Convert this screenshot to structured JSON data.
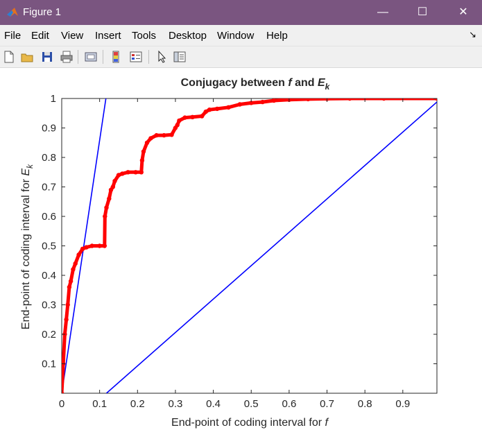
{
  "window": {
    "title": "Figure 1",
    "minimize_glyph": "—",
    "maximize_glyph": "☐",
    "close_glyph": "✕"
  },
  "menu": {
    "items": [
      {
        "label": "File"
      },
      {
        "label": "Edit"
      },
      {
        "label": "View"
      },
      {
        "label": "Insert"
      },
      {
        "label": "Tools"
      },
      {
        "label": "Desktop"
      },
      {
        "label": "Window"
      },
      {
        "label": "Help"
      }
    ],
    "dock_glyph": "↘"
  },
  "toolbar": {
    "icons": [
      "new-figure-icon",
      "open-file-icon",
      "save-icon",
      "print-icon",
      "link-plot-icon",
      "colorbar-icon",
      "legend-icon",
      "edit-plot-arrow-icon",
      "property-inspector-icon"
    ]
  },
  "colors": {
    "titlebar": "#7a5580",
    "curve": "#ff0000",
    "lines": "#0000ff"
  },
  "chart_data": {
    "type": "line",
    "title": "Conjugacy between f and E_k",
    "title_main": "Conjugacy between ",
    "title_f": "f",
    "title_and": " and ",
    "title_E": "E",
    "title_k": "k",
    "xlabel": "End-point of coding interval for ",
    "xlabel_var": "f",
    "ylabel": "End-point of coding interval for ",
    "ylabel_var": "E",
    "ylabel_sub": "k",
    "xlim": [
      0,
      0.99
    ],
    "ylim": [
      0,
      1
    ],
    "xticks": [
      "0",
      "0.1",
      "0.2",
      "0.3",
      "0.4",
      "0.5",
      "0.6",
      "0.7",
      "0.8",
      "0.9"
    ],
    "yticks": [
      "0.1",
      "0.2",
      "0.3",
      "0.4",
      "0.5",
      "0.6",
      "0.7",
      "0.8",
      "0.9",
      "1"
    ],
    "grid": false,
    "series": [
      {
        "style": "thick-red-markers",
        "x": [
          0,
          0.004,
          0.008,
          0.012,
          0.016,
          0.02,
          0.024,
          0.03,
          0.036,
          0.045,
          0.055,
          0.065,
          0.08,
          0.1,
          0.113,
          0.114,
          0.118,
          0.125,
          0.13,
          0.135,
          0.14,
          0.15,
          0.16,
          0.175,
          0.195,
          0.21,
          0.212,
          0.216,
          0.225,
          0.235,
          0.25,
          0.27,
          0.29,
          0.3,
          0.305,
          0.31,
          0.325,
          0.345,
          0.37,
          0.38,
          0.39,
          0.41,
          0.44,
          0.47,
          0.5,
          0.53,
          0.56,
          0.6,
          0.65,
          0.7,
          0.76,
          0.85,
          0.99
        ],
        "y": [
          0,
          0.1,
          0.2,
          0.25,
          0.3,
          0.36,
          0.38,
          0.42,
          0.44,
          0.47,
          0.49,
          0.495,
          0.5,
          0.5,
          0.5,
          0.6,
          0.63,
          0.66,
          0.69,
          0.7,
          0.72,
          0.74,
          0.745,
          0.75,
          0.75,
          0.75,
          0.79,
          0.82,
          0.85,
          0.865,
          0.875,
          0.875,
          0.877,
          0.9,
          0.91,
          0.925,
          0.935,
          0.937,
          0.94,
          0.955,
          0.962,
          0.965,
          0.97,
          0.98,
          0.985,
          0.988,
          0.993,
          0.996,
          0.998,
          0.999,
          1,
          1,
          1
        ]
      },
      {
        "style": "thin-blue-line",
        "x": [
          0,
          0.12
        ],
        "y": [
          0,
          1.03
        ]
      },
      {
        "style": "thin-blue-line",
        "x": [
          0.118,
          0.99
        ],
        "y": [
          0,
          0.988
        ]
      }
    ]
  }
}
